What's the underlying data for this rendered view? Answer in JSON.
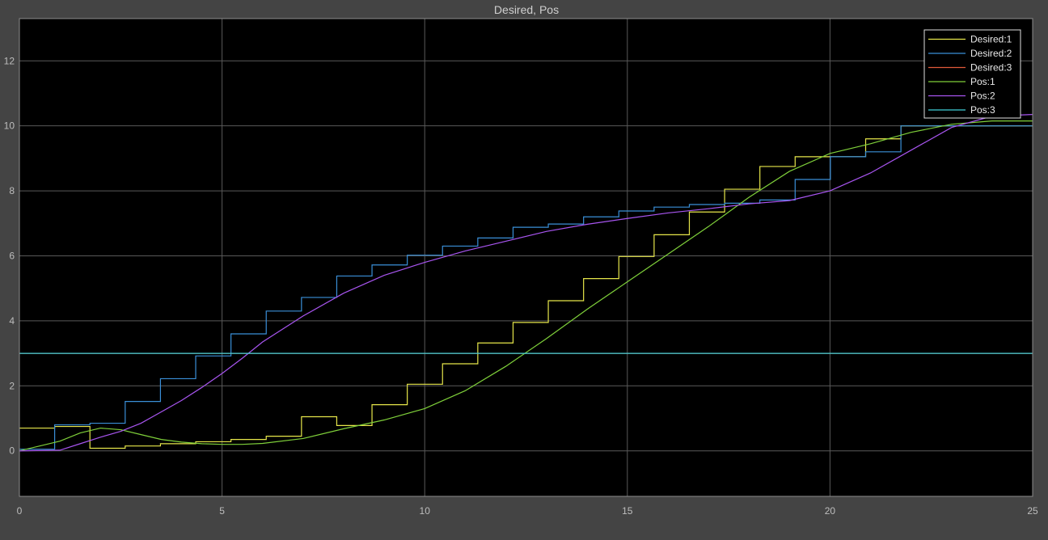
{
  "window": {
    "title": "Desired, Pos"
  },
  "chart_data": {
    "type": "line",
    "title": "Desired, Pos",
    "xlabel": "",
    "ylabel": "",
    "xlim": [
      0,
      25
    ],
    "ylim": [
      -1.4,
      13.3
    ],
    "xticks": [
      0,
      5,
      10,
      15,
      20,
      25
    ],
    "yticks": [
      0,
      2,
      4,
      6,
      8,
      10,
      12
    ],
    "grid": true,
    "legend_position": "top-right",
    "colors": {
      "background": "#000000",
      "frame": "#444444",
      "grid": "#5a5a5a",
      "axis": "#8c8c8c"
    },
    "series": [
      {
        "name": "Desired:1",
        "color": "#e6e64a",
        "step": true,
        "x": [
          0,
          0.87,
          1.74,
          2.61,
          3.48,
          4.35,
          5.22,
          6.09,
          6.96,
          7.83,
          8.7,
          9.57,
          10.44,
          11.31,
          12.18,
          13.05,
          13.92,
          14.79,
          15.66,
          16.53,
          17.4,
          18.27,
          19.14,
          20.01,
          20.88,
          21.75,
          25
        ],
        "y": [
          0.7,
          0.75,
          0.08,
          0.15,
          0.22,
          0.28,
          0.35,
          0.45,
          1.05,
          0.78,
          1.42,
          2.05,
          2.68,
          3.32,
          3.95,
          4.62,
          5.3,
          5.98,
          6.65,
          7.35,
          8.05,
          8.75,
          9.05,
          9.05,
          9.6,
          10.0,
          10.0
        ]
      },
      {
        "name": "Desired:2",
        "color": "#3a8fd8",
        "step": true,
        "x": [
          0,
          0.87,
          1.74,
          2.61,
          3.48,
          4.35,
          5.22,
          6.09,
          6.96,
          7.83,
          8.7,
          9.57,
          10.44,
          11.31,
          12.18,
          13.05,
          13.92,
          14.79,
          15.66,
          16.53,
          17.4,
          18.27,
          19.14,
          20.01,
          20.88,
          21.75,
          25
        ],
        "y": [
          0.05,
          0.8,
          0.85,
          1.52,
          2.22,
          2.92,
          3.6,
          4.3,
          4.72,
          5.38,
          5.72,
          6.02,
          6.3,
          6.55,
          6.88,
          6.98,
          7.2,
          7.38,
          7.5,
          7.58,
          7.62,
          7.72,
          8.35,
          9.05,
          9.2,
          10.0,
          10.0
        ]
      },
      {
        "name": "Desired:3",
        "color": "#e05a3a",
        "step": false,
        "x": [
          0,
          25
        ],
        "y": [
          3.0,
          3.0
        ]
      },
      {
        "name": "Pos:1",
        "color": "#7fd03a",
        "step": false,
        "x": [
          0,
          1,
          1.5,
          2,
          2.5,
          3,
          3.5,
          4,
          4.5,
          5,
          5.5,
          6,
          7,
          8,
          9,
          10,
          11,
          12,
          13,
          14,
          15,
          16,
          17,
          18,
          19,
          20,
          21,
          22,
          23,
          24,
          25
        ],
        "y": [
          0,
          0.3,
          0.55,
          0.7,
          0.65,
          0.5,
          0.35,
          0.27,
          0.22,
          0.2,
          0.2,
          0.23,
          0.38,
          0.68,
          0.95,
          1.3,
          1.85,
          2.6,
          3.45,
          4.35,
          5.2,
          6.05,
          6.9,
          7.8,
          8.6,
          9.15,
          9.45,
          9.8,
          10.05,
          10.15,
          10.15
        ]
      },
      {
        "name": "Pos:2",
        "color": "#a855f0",
        "step": false,
        "x": [
          0,
          1,
          1.5,
          2,
          2.5,
          3,
          3.5,
          4,
          4.5,
          5,
          5.5,
          6,
          7,
          8,
          9,
          10,
          11,
          12,
          13,
          14,
          15,
          16,
          17,
          18,
          19,
          20,
          21,
          22,
          23,
          24,
          25
        ],
        "y": [
          0,
          0.02,
          0.22,
          0.42,
          0.6,
          0.85,
          1.2,
          1.55,
          1.95,
          2.38,
          2.85,
          3.35,
          4.15,
          4.85,
          5.4,
          5.8,
          6.15,
          6.45,
          6.75,
          6.97,
          7.15,
          7.32,
          7.45,
          7.6,
          7.7,
          8.0,
          8.55,
          9.25,
          9.95,
          10.3,
          10.35
        ]
      },
      {
        "name": "Pos:3",
        "color": "#3fd0d8",
        "step": false,
        "x": [
          0,
          25
        ],
        "y": [
          3.0,
          3.0
        ]
      }
    ]
  }
}
